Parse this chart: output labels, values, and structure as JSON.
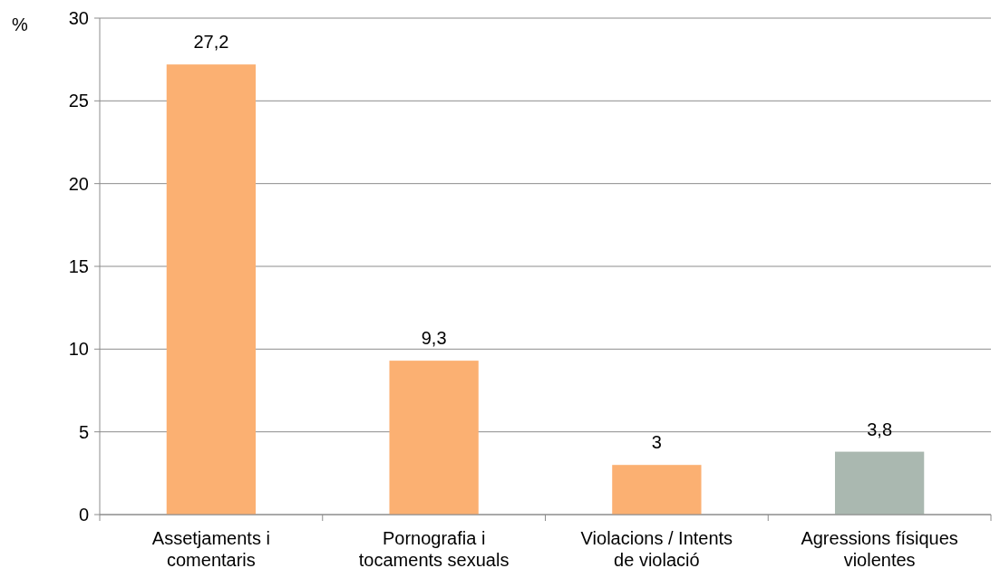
{
  "chart_data": {
    "type": "bar",
    "ylabel": "%",
    "categories": [
      "Assetjaments i comentaris",
      "Pornografia i tocaments sexuals",
      "Violacions / Intents de violació",
      "Agressions físiques violentes"
    ],
    "values": [
      27.2,
      9.3,
      3,
      3.8
    ],
    "colors": [
      "#fbb072",
      "#fbb072",
      "#fbb072",
      "#aab8b0"
    ],
    "value_labels": [
      "27,2",
      "9,3",
      "3",
      "3,8"
    ],
    "ylim": [
      0,
      30
    ],
    "yticks": [
      0,
      5,
      10,
      15,
      20,
      25,
      30
    ],
    "grid": "y"
  }
}
